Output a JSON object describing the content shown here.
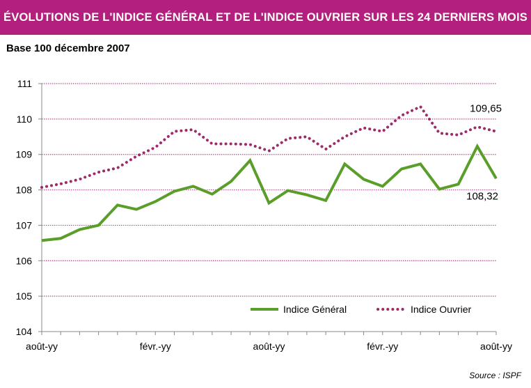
{
  "chart_data": {
    "type": "line",
    "title": "ÉVOLUTIONS DE L'INDICE GÉNÉRAL ET DE L'INDICE OUVRIER SUR LES 24 DERNIERS MOIS",
    "subtitle": "Base 100 décembre 2007",
    "xlabel": "",
    "ylabel": "",
    "ylim": [
      104,
      111
    ],
    "yticks": [
      "104",
      "105",
      "106",
      "107",
      "108",
      "109",
      "110",
      "111"
    ],
    "xtick_labels": [
      "août-yy",
      "févr.-yy",
      "août-yy",
      "févr.-yy",
      "août-yy"
    ],
    "xtick_indices": [
      0,
      6,
      12,
      18,
      24
    ],
    "grid": true,
    "legend_position": "bottom-right",
    "series": [
      {
        "name": "Indice Général",
        "color": "#5a9e2a",
        "style": "solid",
        "values": [
          106.57,
          106.63,
          106.88,
          107.0,
          107.57,
          107.45,
          107.67,
          107.96,
          108.1,
          107.88,
          108.24,
          108.83,
          107.63,
          107.98,
          107.86,
          107.7,
          108.73,
          108.3,
          108.1,
          108.59,
          108.73,
          108.02,
          108.16,
          109.23,
          108.32
        ],
        "end_label": "108,32"
      },
      {
        "name": "Indice Ouvrier",
        "color": "#9e2a6a",
        "style": "dotted",
        "values": [
          108.07,
          108.17,
          108.3,
          108.5,
          108.62,
          108.95,
          109.2,
          109.65,
          109.7,
          109.3,
          109.3,
          109.28,
          109.1,
          109.45,
          109.5,
          109.15,
          109.5,
          109.75,
          109.65,
          110.1,
          110.35,
          109.6,
          109.55,
          109.78,
          109.65
        ],
        "end_label": "109,65"
      }
    ],
    "source": "Source : ISPF"
  }
}
